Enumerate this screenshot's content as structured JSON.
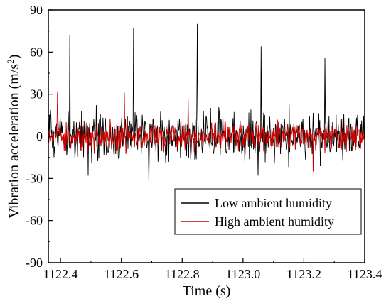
{
  "chart_data": {
    "type": "line",
    "xlabel": "Time (s)",
    "ylabel": "Vibration acceleration (m/s",
    "ylabel_superscript": "2",
    "ylabel_suffix": ")",
    "xlim": [
      1122.36,
      1123.4
    ],
    "ylim": [
      -90,
      90
    ],
    "x_ticks": [
      "1122.4",
      "1122.6",
      "1122.8",
      "1123.0",
      "1123.2",
      "1123.4"
    ],
    "x_tick_values": [
      1122.4,
      1122.6,
      1122.8,
      1123.0,
      1123.2,
      1123.4
    ],
    "y_ticks": [
      "-90",
      "-60",
      "-30",
      "0",
      "30",
      "60",
      "90"
    ],
    "y_tick_values": [
      -90,
      -60,
      -30,
      0,
      30,
      60,
      90
    ],
    "grid": false,
    "legend_position": "bottom-right",
    "series": [
      {
        "name": "Low ambient humidity",
        "color": "#000000",
        "x_start": 1122.36,
        "x_end": 1123.4,
        "amplitude": 18,
        "peaks": [
          {
            "x": 1122.43,
            "y": 72
          },
          {
            "x": 1122.64,
            "y": 77
          },
          {
            "x": 1122.85,
            "y": 80
          },
          {
            "x": 1123.06,
            "y": 64
          },
          {
            "x": 1123.27,
            "y": 56
          },
          {
            "x": 1122.69,
            "y": -32
          },
          {
            "x": 1122.49,
            "y": -28
          },
          {
            "x": 1123.05,
            "y": -28
          }
        ]
      },
      {
        "name": "High ambient humidity",
        "color": "#cc0000",
        "x_start": 1122.36,
        "x_end": 1123.4,
        "amplitude": 10,
        "peaks": [
          {
            "x": 1122.39,
            "y": 32
          },
          {
            "x": 1122.61,
            "y": 31
          },
          {
            "x": 1122.82,
            "y": 27
          },
          {
            "x": 1123.23,
            "y": -25
          }
        ]
      }
    ]
  }
}
